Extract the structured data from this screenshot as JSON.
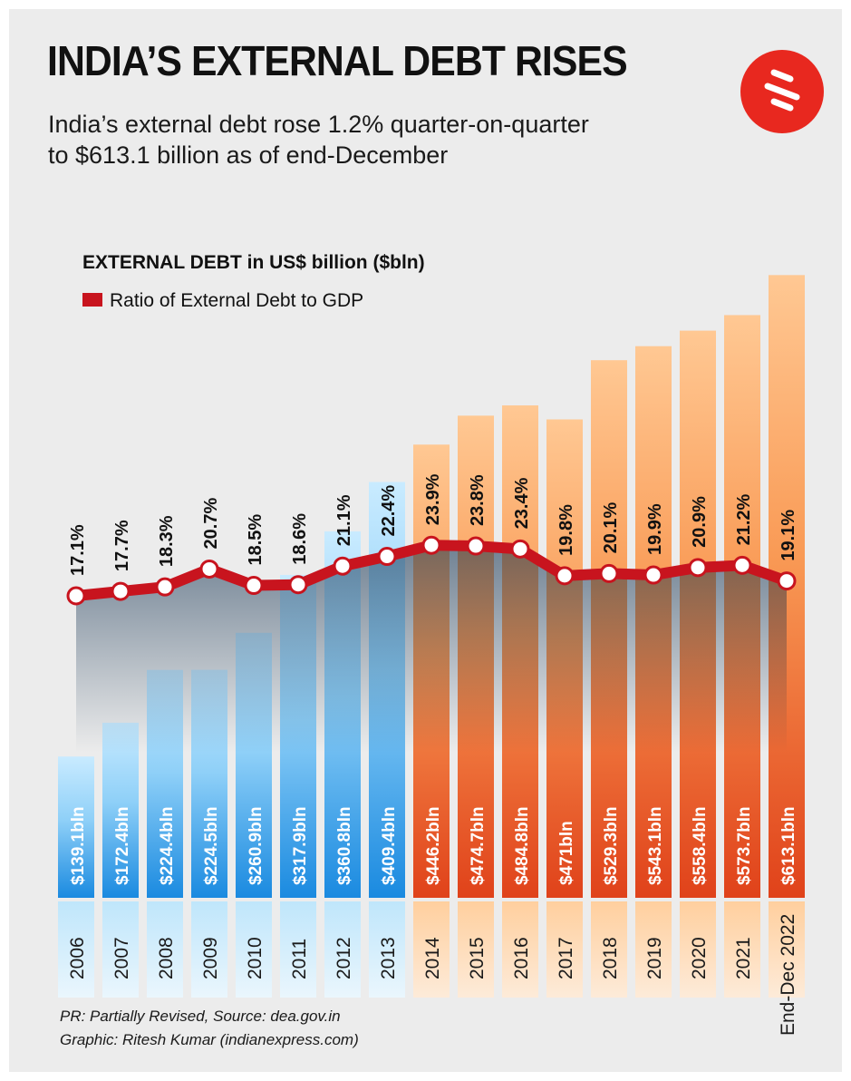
{
  "header": {
    "title": "INDIA’S EXTERNAL DEBT RISES",
    "subtitle_line1": "India’s external debt rose 1.2% quarter-on-quarter",
    "subtitle_line2": "to $613.1 billion as of end-December"
  },
  "legend": {
    "bars_label": "EXTERNAL DEBT in US$ billion ($bln)",
    "line_label": "Ratio of External Debt to GDP"
  },
  "footer": {
    "note": "PR: Partially Revised, Source: dea.gov.in",
    "credit": "Graphic: Ritesh Kumar (indianexpress.com)"
  },
  "colors": {
    "background": "#ececec",
    "early_bar_top": "#c4e9ff",
    "early_bar_bottom": "#1f8fe0",
    "late_bar_top": "#ffc48e",
    "late_bar_bottom": "#e2481a",
    "ratio_line": "#c8141e",
    "logo": "#e8281f"
  },
  "icons": {
    "logo": "indian-express-logo-icon"
  },
  "chart_data": {
    "type": "bar",
    "categories": [
      "2006",
      "2007",
      "2008",
      "2009",
      "2010",
      "2011",
      "2012",
      "2013",
      "2014",
      "2015",
      "2016",
      "2017",
      "2018",
      "2019",
      "2020",
      "2021",
      "End-Dec 2022"
    ],
    "series": [
      {
        "name": "EXTERNAL DEBT in US$ billion ($bln)",
        "values": [
          139.1,
          172.4,
          224.4,
          224.5,
          260.9,
          317.9,
          360.8,
          409.4,
          446.2,
          474.7,
          484.8,
          471,
          529.3,
          543.1,
          558.4,
          573.7,
          613.1
        ],
        "labels": [
          "$139.1bln",
          "$172.4bln",
          "$224.4bln",
          "$224.5bln",
          "$260.9bln",
          "$317.9bln",
          "$360.8bln",
          "$409.4bln",
          "$446.2bln",
          "$474.7bln",
          "$484.8bln",
          "$471bln",
          "$529.3bln",
          "$543.1bln",
          "$558.4bln",
          "$573.7bln",
          "$613.1bln"
        ]
      },
      {
        "name": "Ratio of External Debt to GDP",
        "type": "line",
        "values": [
          17.1,
          17.7,
          18.3,
          20.7,
          18.5,
          18.6,
          21.1,
          22.4,
          23.9,
          23.8,
          23.4,
          19.8,
          20.1,
          19.9,
          20.9,
          21.2,
          19.1
        ],
        "labels": [
          "17.1%",
          "17.7%",
          "18.3%",
          "20.7%",
          "18.5%",
          "18.6%",
          "21.1%",
          "22.4%",
          "23.9%",
          "23.8%",
          "23.4%",
          "19.8%",
          "20.1%",
          "19.9%",
          "20.9%",
          "21.2%",
          "19.1%"
        ]
      }
    ],
    "legend_position": "top-left",
    "grid": false
  }
}
